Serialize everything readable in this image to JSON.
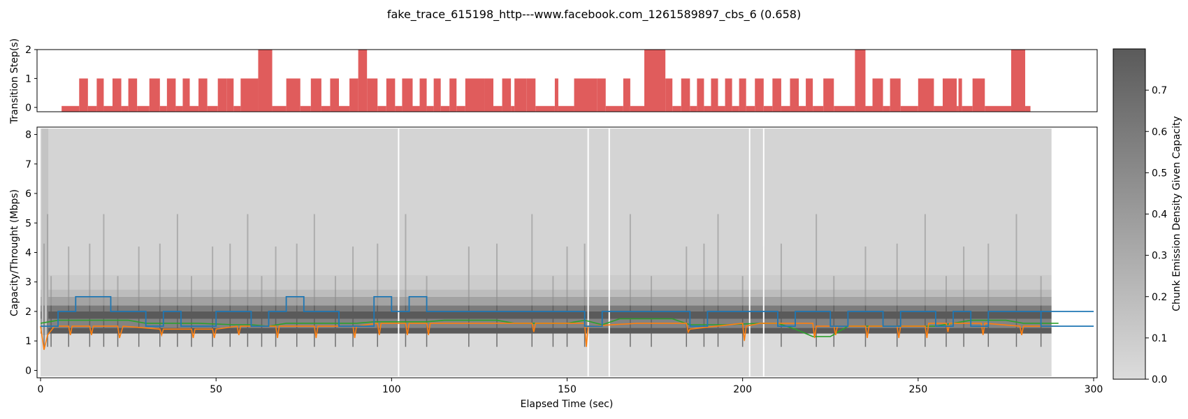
{
  "title": "fake_trace_615198_http---www.facebook.com_1261589897_cbs_6 (0.658)",
  "colors": {
    "bar": "#e05c5c",
    "density_dark": "#5a5a5a",
    "density_light": "#dcdcdc",
    "blue": "#1f77b4",
    "orange": "#ff7f0e",
    "green": "#2ca02c"
  },
  "chart_data": [
    {
      "type": "bar",
      "panel": "top",
      "ylabel": "Transition Step(s)",
      "ylim": [
        -0.15,
        2
      ],
      "yticks": [
        "0",
        "1",
        "2"
      ],
      "intervals": [
        [
          6,
          11,
          0
        ],
        [
          11,
          13.5,
          1
        ],
        [
          13.5,
          16,
          0
        ],
        [
          16,
          18,
          1
        ],
        [
          18,
          20.5,
          0
        ],
        [
          20.5,
          23,
          1
        ],
        [
          23,
          25,
          0
        ],
        [
          25,
          27.5,
          1
        ],
        [
          27.5,
          31,
          0
        ],
        [
          31,
          34,
          1
        ],
        [
          34,
          36,
          0
        ],
        [
          36,
          38.5,
          1
        ],
        [
          38.5,
          40.5,
          0
        ],
        [
          40.5,
          42.5,
          1
        ],
        [
          42.5,
          45,
          0
        ],
        [
          45,
          47.5,
          1
        ],
        [
          47.5,
          50.5,
          0
        ],
        [
          50.5,
          53,
          1
        ],
        [
          53,
          55,
          1
        ],
        [
          55,
          57,
          0
        ],
        [
          57,
          62,
          1
        ],
        [
          62,
          66,
          2
        ],
        [
          66,
          70,
          0
        ],
        [
          70,
          74,
          1
        ],
        [
          74,
          77,
          0
        ],
        [
          77,
          80,
          1
        ],
        [
          80,
          82.5,
          0
        ],
        [
          82.5,
          85,
          1
        ],
        [
          85,
          88,
          0
        ],
        [
          88,
          90.5,
          1
        ],
        [
          90.5,
          93,
          2
        ],
        [
          93,
          96,
          1
        ],
        [
          96,
          98.5,
          0
        ],
        [
          98.5,
          101,
          1
        ],
        [
          101,
          103,
          0
        ],
        [
          103,
          106,
          1
        ],
        [
          106,
          108,
          0
        ],
        [
          108,
          110,
          1
        ],
        [
          110,
          112,
          0
        ],
        [
          112,
          114,
          1
        ],
        [
          114,
          116.5,
          0
        ],
        [
          116.5,
          118.5,
          1
        ],
        [
          118.5,
          121,
          0
        ],
        [
          121,
          126.5,
          1
        ],
        [
          126.5,
          129,
          1
        ],
        [
          129,
          131.5,
          0
        ],
        [
          131.5,
          134,
          1
        ],
        [
          134,
          135,
          0
        ],
        [
          135,
          138.5,
          1
        ],
        [
          138.5,
          141,
          1
        ],
        [
          141,
          146.5,
          0
        ],
        [
          146.5,
          147.5,
          1
        ],
        [
          147.5,
          152,
          0
        ],
        [
          152,
          158.5,
          1
        ],
        [
          158.5,
          161,
          1
        ],
        [
          161,
          166,
          0
        ],
        [
          166,
          168,
          1
        ],
        [
          168,
          172,
          0
        ],
        [
          172,
          178,
          2
        ],
        [
          178,
          180,
          1
        ],
        [
          180,
          182.5,
          0
        ],
        [
          182.5,
          185,
          1
        ],
        [
          185,
          187,
          0
        ],
        [
          187,
          189,
          1
        ],
        [
          189,
          191,
          0
        ],
        [
          191,
          193,
          1
        ],
        [
          193,
          195,
          0
        ],
        [
          195,
          197,
          1
        ],
        [
          197,
          199,
          0
        ],
        [
          199,
          201,
          1
        ],
        [
          201,
          203.5,
          0
        ],
        [
          203.5,
          206,
          1
        ],
        [
          206,
          208.5,
          0
        ],
        [
          208.5,
          211,
          1
        ],
        [
          211,
          213.5,
          0
        ],
        [
          213.5,
          216,
          1
        ],
        [
          216,
          218,
          0
        ],
        [
          218,
          220,
          1
        ],
        [
          220,
          223,
          0
        ],
        [
          223,
          226,
          1
        ],
        [
          226,
          232,
          0
        ],
        [
          232,
          235,
          2
        ],
        [
          235,
          237,
          0
        ],
        [
          237,
          240,
          1
        ],
        [
          240,
          242,
          0
        ],
        [
          242,
          245,
          1
        ],
        [
          245,
          250,
          0
        ],
        [
          250,
          254.5,
          1
        ],
        [
          254.5,
          257,
          0
        ],
        [
          257,
          261,
          1
        ],
        [
          261,
          261.5,
          0
        ],
        [
          261.5,
          262.5,
          1
        ],
        [
          262.5,
          265.5,
          0
        ],
        [
          265.5,
          269,
          1
        ],
        [
          269,
          276.5,
          0
        ],
        [
          276.5,
          280.5,
          2
        ],
        [
          280.5,
          282,
          0
        ]
      ]
    },
    {
      "type": "heatmap",
      "panel": "main",
      "xlabel": "Elapsed Time (sec)",
      "ylabel": "Capacity/Throught (Mbps)",
      "xlim": [
        -1,
        301
      ],
      "ylim": [
        -0.25,
        8.25
      ],
      "xticks": [
        "0",
        "50",
        "100",
        "150",
        "200",
        "250",
        "300"
      ],
      "yticks": [
        "0",
        "1",
        "2",
        "3",
        "4",
        "5",
        "6",
        "7",
        "8"
      ],
      "density_bands": [
        [
          -0.2,
          1.25,
          0.01
        ],
        [
          1.25,
          1.45,
          0.8
        ],
        [
          1.45,
          1.75,
          0.55
        ],
        [
          1.75,
          2.0,
          0.8
        ],
        [
          2.0,
          2.2,
          0.6
        ],
        [
          2.2,
          2.5,
          0.35
        ],
        [
          2.5,
          2.75,
          0.2
        ],
        [
          2.75,
          3.25,
          0.1
        ],
        [
          3.25,
          8.2,
          0.05
        ]
      ],
      "density_xrange": [
        0,
        288
      ],
      "blue_line": [
        [
          0,
          1.5
        ],
        [
          5,
          1.5
        ],
        [
          5,
          2.0
        ],
        [
          10,
          2.0
        ],
        [
          10,
          2.5
        ],
        [
          20,
          2.5
        ],
        [
          20,
          2.0
        ],
        [
          30,
          2.0
        ],
        [
          30,
          1.5
        ],
        [
          35,
          1.5
        ],
        [
          35,
          2.0
        ],
        [
          40,
          2.0
        ],
        [
          40,
          1.5
        ],
        [
          50,
          1.5
        ],
        [
          50,
          2.0
        ],
        [
          60,
          2.0
        ],
        [
          60,
          1.5
        ],
        [
          65,
          1.5
        ],
        [
          65,
          2.0
        ],
        [
          70,
          2.0
        ],
        [
          70,
          2.5
        ],
        [
          75,
          2.5
        ],
        [
          75,
          2.0
        ],
        [
          85,
          2.0
        ],
        [
          85,
          1.5
        ],
        [
          95,
          1.5
        ],
        [
          95,
          2.5
        ],
        [
          100,
          2.5
        ],
        [
          100,
          2.0
        ],
        [
          105,
          2.0
        ],
        [
          105,
          2.5
        ],
        [
          110,
          2.5
        ],
        [
          110,
          2.0
        ],
        [
          155,
          2.0
        ],
        [
          155,
          1.5
        ],
        [
          160,
          1.5
        ],
        [
          160,
          2.0
        ],
        [
          185,
          2.0
        ],
        [
          185,
          1.5
        ],
        [
          190,
          1.5
        ],
        [
          190,
          2.0
        ],
        [
          210,
          2.0
        ],
        [
          210,
          1.5
        ],
        [
          215,
          1.5
        ],
        [
          215,
          2.0
        ],
        [
          225,
          2.0
        ],
        [
          225,
          1.5
        ],
        [
          230,
          1.5
        ],
        [
          230,
          2.0
        ],
        [
          240,
          2.0
        ],
        [
          240,
          1.5
        ],
        [
          245,
          1.5
        ],
        [
          245,
          2.0
        ],
        [
          255,
          2.0
        ],
        [
          255,
          1.5
        ],
        [
          260,
          1.5
        ],
        [
          260,
          2.0
        ],
        [
          265,
          2.0
        ],
        [
          265,
          1.5
        ],
        [
          270,
          1.5
        ],
        [
          270,
          2.0
        ],
        [
          285,
          2.0
        ],
        [
          285,
          1.5
        ],
        [
          300,
          1.5
        ]
      ],
      "blue_line_2": [
        [
          285,
          2.0
        ],
        [
          300,
          2.0
        ]
      ],
      "orange_line": [
        [
          0,
          1.5
        ],
        [
          1,
          0.7
        ],
        [
          2,
          1.2
        ],
        [
          4,
          1.5
        ],
        [
          8,
          1.5
        ],
        [
          8.5,
          1.2
        ],
        [
          9,
          1.5
        ],
        [
          14,
          1.5
        ],
        [
          14.5,
          1.2
        ],
        [
          15,
          1.5
        ],
        [
          22,
          1.5
        ],
        [
          22.5,
          1.1
        ],
        [
          23.5,
          1.5
        ],
        [
          34,
          1.4
        ],
        [
          34.5,
          1.2
        ],
        [
          35,
          1.4
        ],
        [
          43,
          1.4
        ],
        [
          43.5,
          1.1
        ],
        [
          44,
          1.4
        ],
        [
          49,
          1.4
        ],
        [
          49.5,
          1.1
        ],
        [
          50,
          1.4
        ],
        [
          56,
          1.5
        ],
        [
          56.5,
          1.2
        ],
        [
          57,
          1.5
        ],
        [
          67,
          1.5
        ],
        [
          67.5,
          1.1
        ],
        [
          68,
          1.5
        ],
        [
          78,
          1.5
        ],
        [
          78.5,
          1.1
        ],
        [
          79,
          1.5
        ],
        [
          89,
          1.5
        ],
        [
          89.5,
          1.1
        ],
        [
          90,
          1.5
        ],
        [
          96,
          1.6
        ],
        [
          96.5,
          1.2
        ],
        [
          97,
          1.6
        ],
        [
          104,
          1.6
        ],
        [
          104.5,
          1.2
        ],
        [
          105,
          1.6
        ],
        [
          110,
          1.6
        ],
        [
          110.5,
          1.2
        ],
        [
          111,
          1.6
        ],
        [
          140,
          1.6
        ],
        [
          140.5,
          1.3
        ],
        [
          141,
          1.6
        ],
        [
          155,
          1.6
        ],
        [
          155.5,
          0.8
        ],
        [
          156,
          1.5
        ],
        [
          170,
          1.6
        ],
        [
          184,
          1.6
        ],
        [
          184.5,
          1.3
        ],
        [
          185,
          1.4
        ],
        [
          200,
          1.6
        ],
        [
          200.5,
          1.0
        ],
        [
          201,
          1.5
        ],
        [
          205,
          1.6
        ],
        [
          220,
          1.6
        ],
        [
          220.5,
          1.1
        ],
        [
          221,
          1.5
        ],
        [
          226,
          1.5
        ],
        [
          226.5,
          1.2
        ],
        [
          227,
          1.5
        ],
        [
          235,
          1.5
        ],
        [
          235.5,
          1.1
        ],
        [
          236,
          1.5
        ],
        [
          244,
          1.5
        ],
        [
          244.5,
          1.1
        ],
        [
          245,
          1.5
        ],
        [
          252,
          1.5
        ],
        [
          252.5,
          1.1
        ],
        [
          253,
          1.6
        ],
        [
          258,
          1.6
        ],
        [
          258.5,
          1.3
        ],
        [
          259,
          1.6
        ],
        [
          268,
          1.6
        ],
        [
          268.5,
          1.2
        ],
        [
          269,
          1.6
        ],
        [
          279,
          1.5
        ],
        [
          279.5,
          1.2
        ],
        [
          280,
          1.5
        ],
        [
          290,
          1.5
        ]
      ],
      "green_line": [
        [
          0,
          1.6
        ],
        [
          5,
          1.7
        ],
        [
          15,
          1.7
        ],
        [
          20,
          1.7
        ],
        [
          25,
          1.7
        ],
        [
          30,
          1.6
        ],
        [
          40,
          1.6
        ],
        [
          45,
          1.6
        ],
        [
          55,
          1.55
        ],
        [
          60,
          1.55
        ],
        [
          65,
          1.5
        ],
        [
          70,
          1.6
        ],
        [
          80,
          1.6
        ],
        [
          90,
          1.6
        ],
        [
          95,
          1.65
        ],
        [
          110,
          1.65
        ],
        [
          115,
          1.7
        ],
        [
          130,
          1.7
        ],
        [
          135,
          1.6
        ],
        [
          150,
          1.6
        ],
        [
          155,
          1.7
        ],
        [
          160,
          1.55
        ],
        [
          165,
          1.75
        ],
        [
          180,
          1.75
        ],
        [
          185,
          1.55
        ],
        [
          195,
          1.55
        ],
        [
          205,
          1.6
        ],
        [
          210,
          1.6
        ],
        [
          215,
          1.4
        ],
        [
          220,
          1.15
        ],
        [
          225,
          1.15
        ],
        [
          230,
          1.5
        ],
        [
          240,
          1.5
        ],
        [
          245,
          1.5
        ],
        [
          255,
          1.5
        ],
        [
          260,
          1.6
        ],
        [
          265,
          1.7
        ],
        [
          275,
          1.7
        ],
        [
          280,
          1.6
        ],
        [
          290,
          1.6
        ]
      ],
      "spike_times": [
        1,
        2,
        3,
        8,
        14,
        18,
        22,
        28,
        34,
        39,
        43,
        49,
        54,
        59,
        63,
        67,
        73,
        78,
        84,
        89,
        96,
        104,
        110,
        122,
        130,
        140,
        146,
        150,
        155,
        168,
        174,
        184,
        189,
        193,
        200,
        206,
        211,
        221,
        226,
        235,
        244,
        252,
        258,
        263,
        270,
        278,
        285
      ],
      "white_lines": [
        102,
        156,
        162,
        202,
        206
      ]
    },
    {
      "type": "colorbar",
      "panel": "colorbar",
      "label": "Chunk Emission Density Given Capacity",
      "range": [
        0,
        0.8
      ],
      "ticks": [
        "0.0",
        "0.1",
        "0.2",
        "0.3",
        "0.4",
        "0.5",
        "0.6",
        "0.7"
      ]
    }
  ]
}
